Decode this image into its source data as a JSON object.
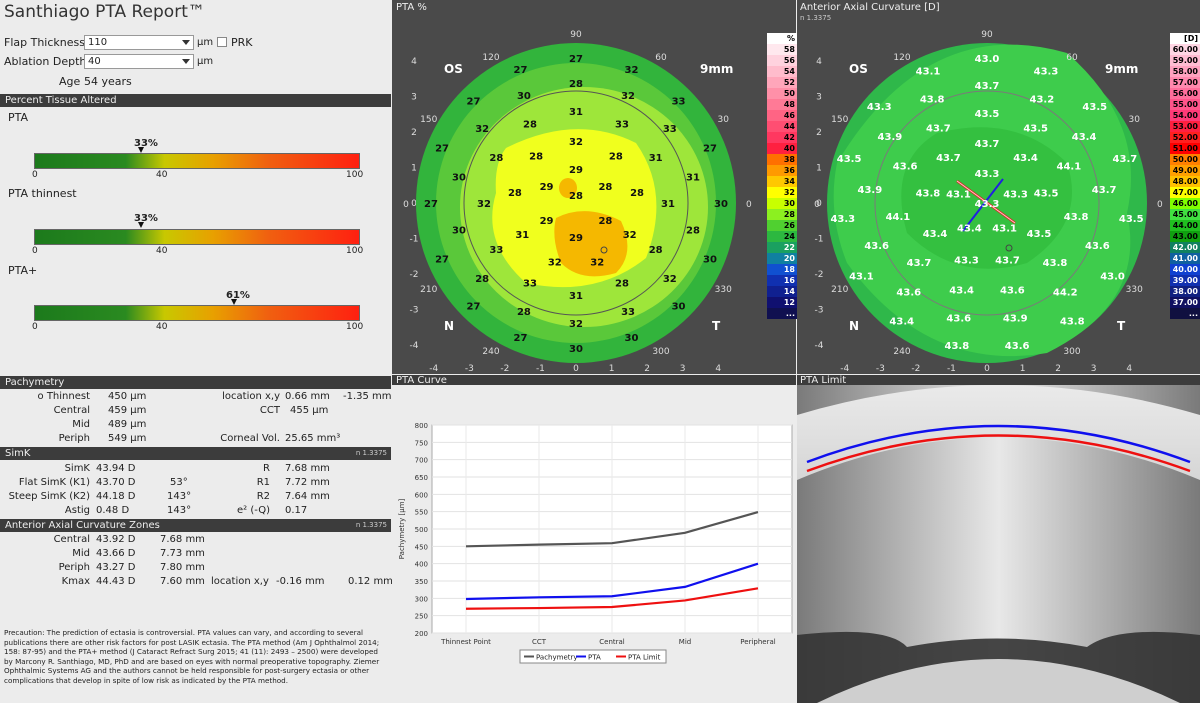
{
  "app_title": "Santhiago PTA Report™",
  "form": {
    "flap_label": "Flap Thickness",
    "flap_value": "110",
    "flap_unit": "µm",
    "prk_label": "PRK",
    "ablation_label": "Ablation Depth",
    "ablation_value": "40",
    "ablation_unit": "µm",
    "age_label": "Age",
    "age_value": "54 years"
  },
  "pta_section": {
    "header": "Percent Tissue Altered",
    "bars": [
      {
        "label": "PTA",
        "value_label": "33%",
        "value": 33
      },
      {
        "label": "PTA thinnest",
        "value_label": "33%",
        "value": 33
      },
      {
        "label": "PTA+",
        "value_label": "61%",
        "value": 61
      }
    ],
    "ticks": [
      "0",
      "40",
      "100"
    ]
  },
  "pachy": {
    "header": "Pachymetry",
    "rows": [
      {
        "label": "o Thinnest",
        "value": "450 µm"
      },
      {
        "label": "Central",
        "value": "459 µm"
      },
      {
        "label": "Mid",
        "value": "489 µm"
      },
      {
        "label": "Periph",
        "value": "549 µm"
      }
    ],
    "loc_label": "location x,y",
    "loc_x": "0.66 mm",
    "loc_y": "-1.35 mm",
    "cct_label": "CCT",
    "cct_value": "455 µm",
    "vol_label": "Corneal Vol.",
    "vol_value": "25.65 mm³"
  },
  "simk": {
    "header": "SimK",
    "n": "n 1.3375",
    "rows": [
      {
        "label": "SimK",
        "value": "43.94 D",
        "axis": "",
        "rlabel": "R",
        "rvalue": "7.68 mm"
      },
      {
        "label": "Flat SimK (K1)",
        "value": "43.70 D",
        "axis": "53°",
        "rlabel": "R1",
        "rvalue": "7.72 mm"
      },
      {
        "label": "Steep SimK (K2)",
        "value": "44.18 D",
        "axis": "143°",
        "rlabel": "R2",
        "rvalue": "7.64 mm"
      },
      {
        "label": "Astig",
        "value": "0.48 D",
        "axis": "143°",
        "rlabel": "e² (-Q)",
        "rvalue": "0.17"
      }
    ]
  },
  "zones": {
    "header": "Anterior Axial Curvature Zones",
    "n": "n 1.3375",
    "rows": [
      {
        "label": "Central",
        "value": "43.92 D",
        "mm": "7.68 mm"
      },
      {
        "label": "Mid",
        "value": "43.66 D",
        "mm": "7.73 mm"
      },
      {
        "label": "Periph",
        "value": "43.27 D",
        "mm": "7.80 mm"
      },
      {
        "label": "Kmax",
        "value": "44.43 D",
        "mm": "7.60 mm"
      }
    ],
    "loc_label": "location x,y",
    "loc_x": "-0.16 mm",
    "loc_y": "0.12 mm"
  },
  "precaution": "Precaution: The prediction of ectasia is controversial. PTA values can vary, and according to several publications there are other risk factors for post LASIK ectasia. The PTA method (Am J Ophthalmol 2014; 158: 87-95) and the PTA+ method (J Cataract Refract Surg 2015; 41 (11): 2493 – 2500) were developed by Marcony R. Santhiago, MD, PhD and are based on eyes with normal preoperative topography. Ziemer Ophthalmic Systems AG and the authors cannot be held responsible for post-surgery ectasia or other complications that develop in spite of low risk as indicated by the PTA method.",
  "pta_map": {
    "title": "PTA %",
    "eye": "OS",
    "zone": "9mm",
    "nasal": "N",
    "temporal": "T",
    "axis_ticks": [
      "-4",
      "-3",
      "-2",
      "-1",
      "0",
      "1",
      "2",
      "3",
      "4"
    ],
    "angles": [
      "90",
      "120",
      "150",
      "0",
      "210",
      "240",
      "300",
      "330",
      "30",
      "60"
    ],
    "scale_unit": "%",
    "scale": [
      "58",
      "56",
      "54",
      "52",
      "50",
      "48",
      "46",
      "44",
      "42",
      "40",
      "38",
      "36",
      "34",
      "32",
      "30",
      "28",
      "26",
      "24",
      "22",
      "20",
      "18",
      "16",
      "14",
      "12",
      "..."
    ],
    "values": [
      "27",
      "27",
      "27",
      "27",
      "27",
      "27",
      "27",
      "27",
      "30",
      "30",
      "30",
      "30",
      "30",
      "27",
      "33",
      "32",
      "28",
      "30",
      "32",
      "30",
      "30",
      "28",
      "28",
      "32",
      "33",
      "32",
      "28",
      "31",
      "33",
      "32",
      "31",
      "28",
      "28",
      "32",
      "33",
      "33",
      "31",
      "28",
      "28",
      "31",
      "31",
      "33",
      "32",
      "28",
      "28",
      "31",
      "32",
      "32",
      "32",
      "28",
      "28",
      "29",
      "29",
      "29",
      "29",
      "28",
      "28",
      "28"
    ]
  },
  "curv_map": {
    "title": "Anterior Axial Curvature  [D]",
    "n": "n 1.3375",
    "eye": "OS",
    "zone": "9mm",
    "nasal": "N",
    "temporal": "T",
    "scale_unit": "[D]",
    "scale": [
      "60.00",
      "59.00",
      "58.00",
      "57.00",
      "56.00",
      "55.00",
      "54.00",
      "53.00",
      "52.00",
      "51.00",
      "50.00",
      "49.00",
      "48.00",
      "47.00",
      "46.00",
      "45.00",
      "44.00",
      "43.00",
      "42.00",
      "41.00",
      "40.00",
      "39.00",
      "38.00",
      "37.00",
      "..."
    ],
    "values": [
      "43.0",
      "43.1",
      "43.3",
      "43.5",
      "43.3",
      "43.1",
      "43.4",
      "43.8",
      "43.6",
      "43.8",
      "43.0",
      "43.5",
      "43.7",
      "43.5",
      "43.3",
      "43.7",
      "43.8",
      "43.9",
      "43.9",
      "43.6",
      "43.6",
      "43.6",
      "43.9",
      "44.2",
      "43.6",
      "43.7",
      "43.4",
      "43.2",
      "43.5",
      "43.7",
      "43.6",
      "44.1",
      "43.7",
      "43.4",
      "43.6",
      "43.8",
      "43.8",
      "44.1",
      "43.5",
      "43.7",
      "43.7",
      "43.8",
      "43.4",
      "43.3",
      "43.7",
      "43.5",
      "43.5",
      "43.4",
      "43.3",
      "43.1",
      "43.4",
      "43.1",
      "43.3",
      "43.3"
    ]
  },
  "pta_curve": {
    "title": "PTA Curve",
    "chart_data": {
      "type": "line",
      "categories": [
        "Thinnest Point",
        "CCT",
        "Central",
        "Mid",
        "Peripheral"
      ],
      "series": [
        {
          "name": "Pachymetry",
          "color": "#555555",
          "values": [
            450,
            455,
            459,
            489,
            549
          ]
        },
        {
          "name": "PTA",
          "color": "#1010ee",
          "values": [
            298,
            303,
            306,
            333,
            400
          ]
        },
        {
          "name": "PTA Limit",
          "color": "#ee1010",
          "values": [
            270,
            272,
            275,
            294,
            329
          ]
        }
      ],
      "ylabel": "Pachymetry [µm]",
      "ylim": [
        200,
        800
      ],
      "yticks": [
        "200",
        "250",
        "300",
        "350",
        "400",
        "450",
        "500",
        "550",
        "600",
        "650",
        "700",
        "750",
        "800"
      ]
    }
  },
  "pta_limit_title": "PTA Limit"
}
